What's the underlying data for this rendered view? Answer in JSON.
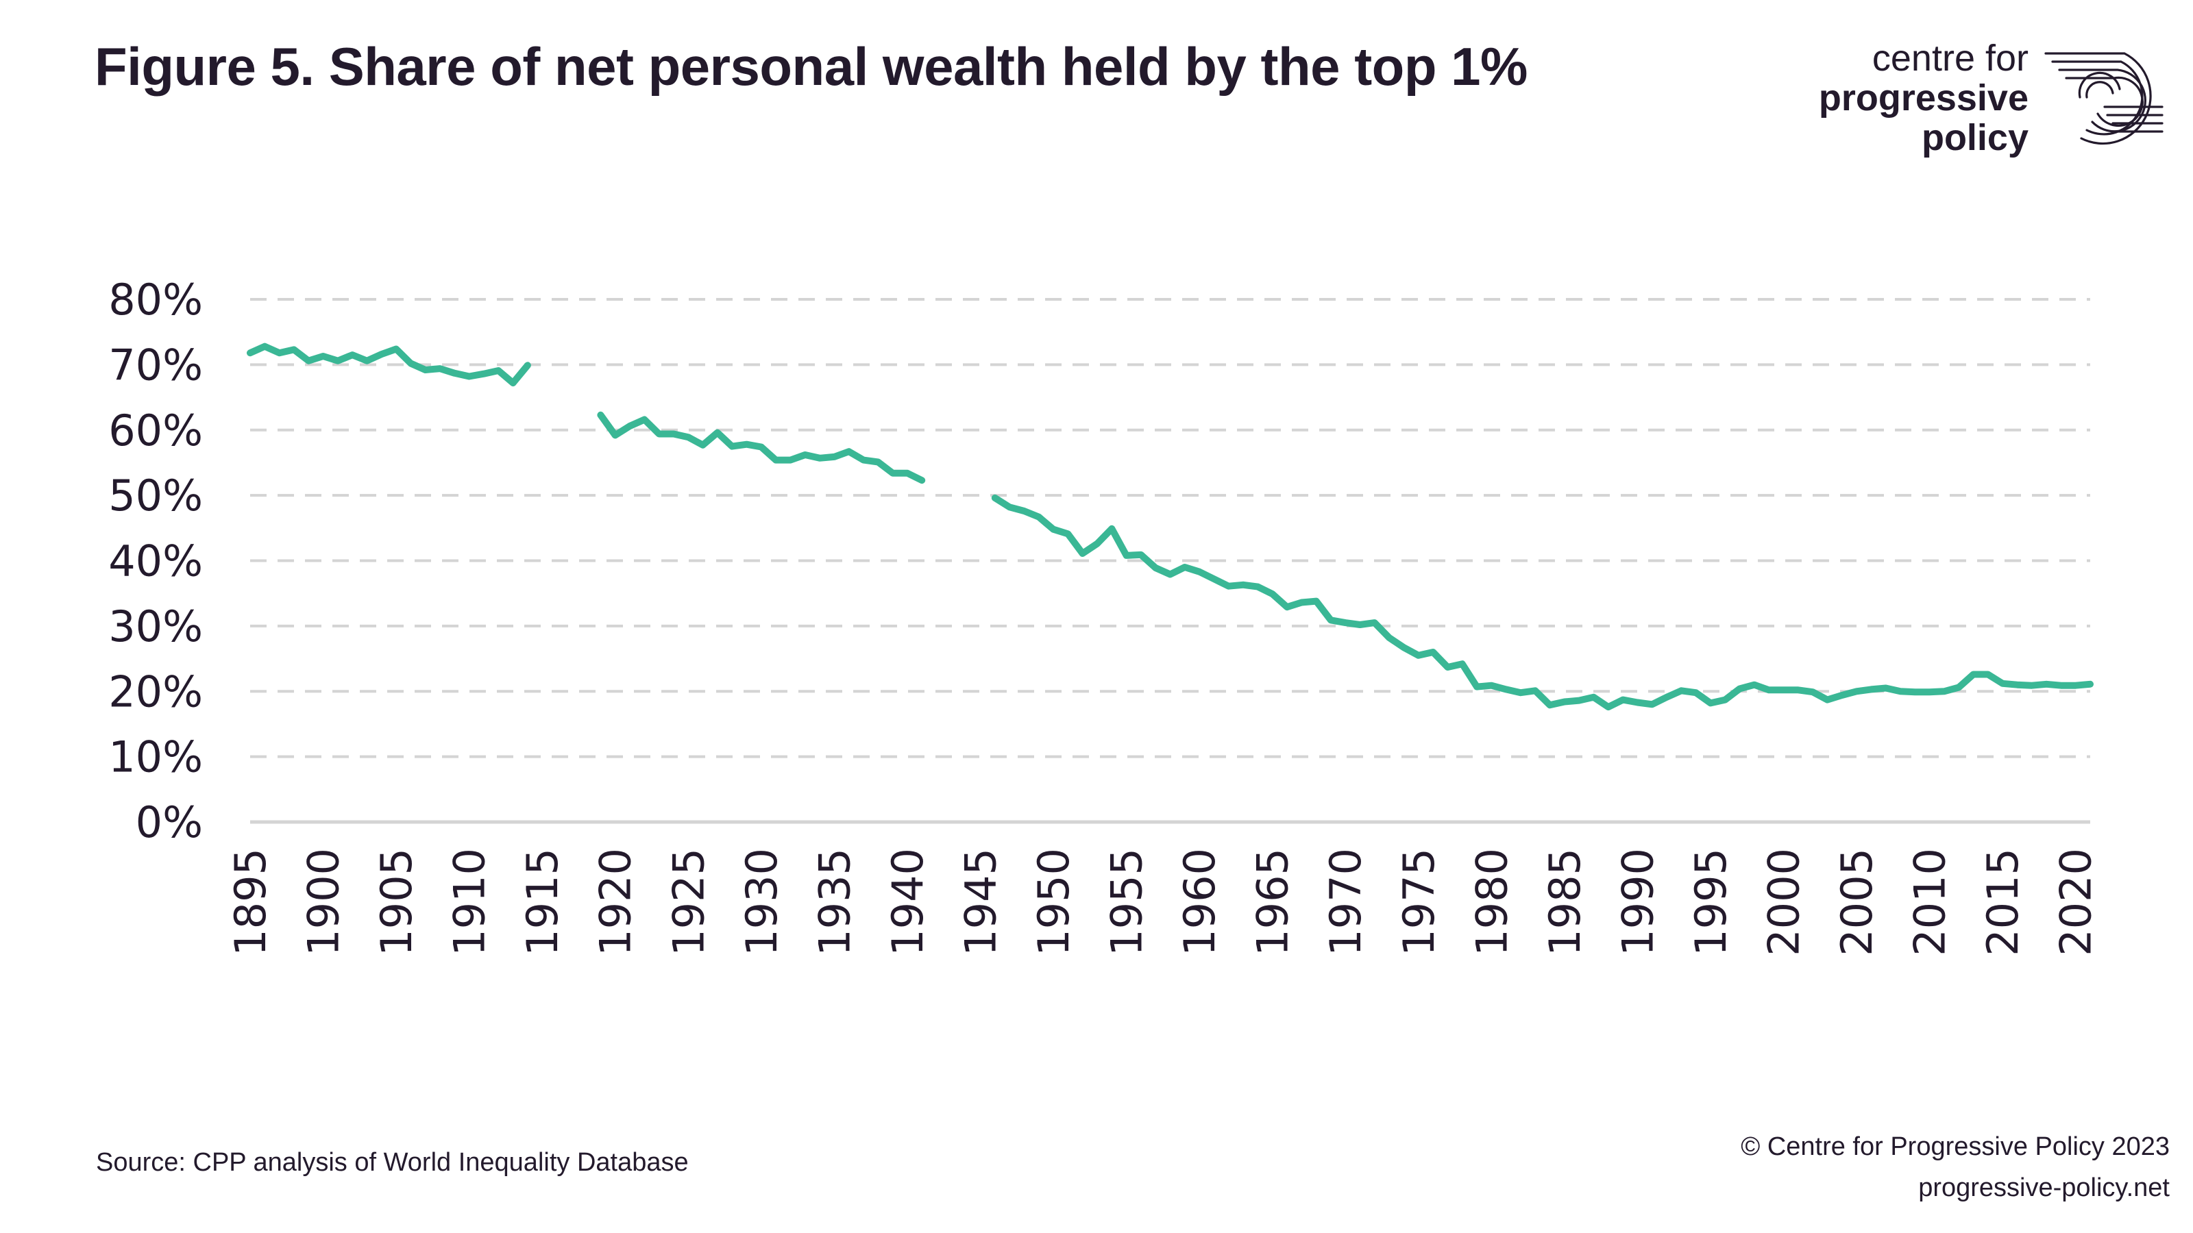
{
  "header": {
    "title": "Figure 5. Share of net personal wealth held by the top 1%"
  },
  "logo": {
    "line1": "centre for",
    "line2": "progressive",
    "line3": "policy",
    "icon": "swirl-logo-icon"
  },
  "footer": {
    "source": "Source: CPP analysis of World Inequality Database",
    "copyright": "© Centre for Progressive Policy 2023",
    "website": "progressive-policy.net"
  },
  "colors": {
    "line": "#3ab795",
    "grid": "#d4d4d4",
    "text": "#231a2c"
  },
  "chart_data": {
    "type": "line",
    "title": "Figure 5. Share of net personal wealth held by the top 1%",
    "xlabel": "",
    "ylabel": "",
    "ylim": [
      0,
      80
    ],
    "xlim": [
      1895,
      2021
    ],
    "y_ticks": [
      "0%",
      "10%",
      "20%",
      "30%",
      "40%",
      "50%",
      "60%",
      "70%",
      "80%"
    ],
    "x_ticks": [
      "1895",
      "1900",
      "1905",
      "1910",
      "1915",
      "1920",
      "1925",
      "1930",
      "1935",
      "1940",
      "1945",
      "1950",
      "1955",
      "1960",
      "1965",
      "1970",
      "1975",
      "1980",
      "1985",
      "1990",
      "1995",
      "2000",
      "2005",
      "2010",
      "2015",
      "2020"
    ],
    "grid": true,
    "series": [
      {
        "segments": [
          {
            "x": [
              1895,
              1896,
              1897,
              1898,
              1899,
              1900,
              1901,
              1902,
              1903,
              1904,
              1905,
              1906,
              1907,
              1908,
              1909,
              1910,
              1911,
              1912,
              1913,
              1914
            ],
            "y": [
              71.8,
              72.8,
              71.8,
              72.3,
              70.6,
              71.3,
              70.6,
              71.5,
              70.6,
              71.6,
              72.4,
              70.2,
              69.2,
              69.4,
              68.7,
              68.2,
              68.6,
              69.1,
              67.2,
              69.9
            ]
          },
          {
            "x": [
              1919,
              1920,
              1921,
              1922,
              1923,
              1924,
              1925,
              1926,
              1927,
              1928,
              1929,
              1930,
              1931,
              1932,
              1933,
              1934,
              1935,
              1936,
              1937,
              1938,
              1939,
              1940,
              1941
            ],
            "y": [
              62.3,
              59.2,
              60.6,
              61.6,
              59.4,
              59.4,
              58.9,
              57.7,
              59.6,
              57.5,
              57.8,
              57.4,
              55.4,
              55.4,
              56.2,
              55.7,
              55.9,
              56.7,
              55.4,
              55.1,
              53.4,
              53.4,
              52.3
            ]
          },
          {
            "x": [
              1946,
              1947,
              1948,
              1949,
              1950,
              1951,
              1952,
              1953,
              1954,
              1955,
              1956,
              1957,
              1958,
              1959,
              1960,
              1961,
              1962,
              1963,
              1964,
              1965,
              1966,
              1967,
              1968,
              1969,
              1970,
              1971,
              1972,
              1973,
              1974,
              1975,
              1976,
              1977,
              1978,
              1979,
              1980,
              1981,
              1982,
              1983,
              1984,
              1985,
              1986,
              1987,
              1988,
              1989,
              1990,
              1991,
              1992,
              1993,
              1994,
              1995,
              1996,
              1997,
              1998,
              1999,
              2000,
              2001,
              2002,
              2003,
              2004,
              2005,
              2006,
              2007,
              2008,
              2009,
              2010,
              2011,
              2012,
              2013,
              2014,
              2015,
              2016,
              2017,
              2018,
              2019,
              2020,
              2021
            ],
            "y": [
              49.6,
              48.2,
              47.6,
              46.7,
              44.8,
              44.1,
              41.1,
              42.6,
              44.9,
              40.8,
              40.9,
              38.9,
              37.9,
              39.0,
              38.3,
              37.2,
              36.1,
              36.3,
              36.0,
              34.9,
              32.9,
              33.6,
              33.8,
              30.9,
              30.5,
              30.2,
              30.5,
              28.2,
              26.7,
              25.5,
              26.0,
              23.7,
              24.2,
              20.7,
              20.9,
              20.3,
              19.8,
              20.1,
              17.9,
              18.4,
              18.6,
              19.1,
              17.6,
              18.7,
              18.3,
              18.0,
              19.1,
              20.1,
              19.8,
              18.2,
              18.7,
              20.4,
              21.0,
              20.2,
              20.2,
              20.2,
              19.9,
              18.7,
              19.4,
              20.0,
              20.3,
              20.5,
              20.0,
              19.9,
              19.9,
              20.0,
              20.6,
              22.6,
              22.6,
              21.2,
              21.0,
              20.9,
              21.1,
              20.9,
              20.9,
              21.1
            ]
          }
        ]
      }
    ]
  }
}
